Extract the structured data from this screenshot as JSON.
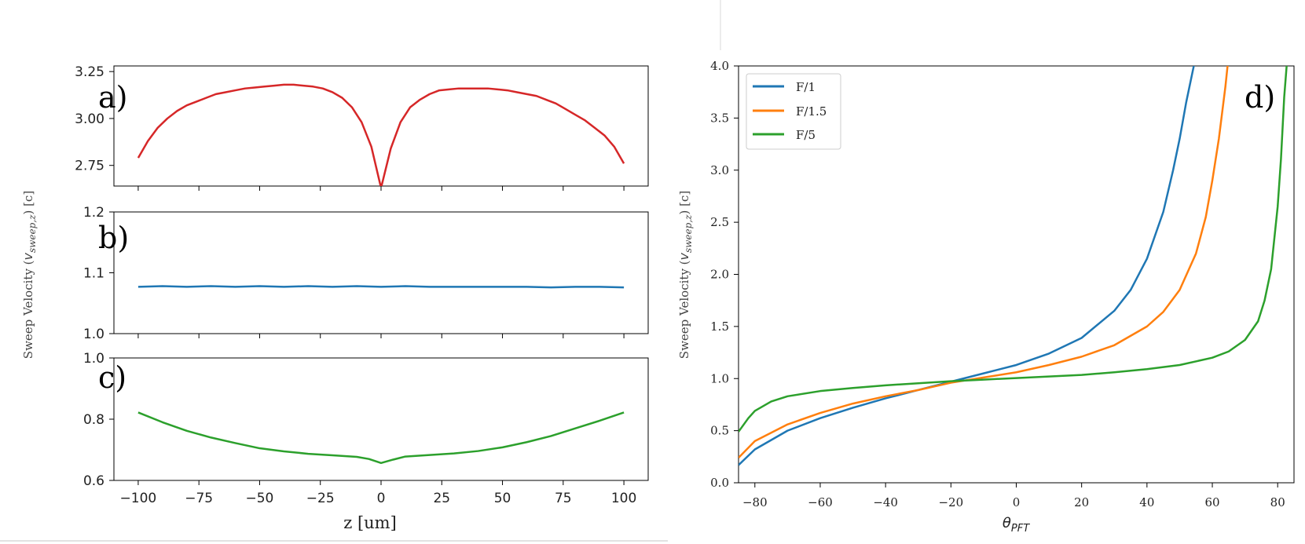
{
  "chart_data": [
    {
      "type": "line",
      "panel_label": "a)",
      "series": [
        {
          "color": "#d62728",
          "x": [
            -100,
            -96,
            -92,
            -88,
            -84,
            -80,
            -76,
            -72,
            -68,
            -64,
            -60,
            -56,
            -52,
            -48,
            -44,
            -40,
            -36,
            -32,
            -28,
            -24,
            -20,
            -16,
            -12,
            -8,
            -4,
            0,
            4,
            8,
            12,
            16,
            20,
            24,
            28,
            32,
            36,
            40,
            44,
            48,
            52,
            56,
            60,
            64,
            68,
            72,
            76,
            80,
            84,
            88,
            92,
            96,
            100
          ],
          "y": [
            2.79,
            2.88,
            2.95,
            3.0,
            3.04,
            3.07,
            3.09,
            3.11,
            3.13,
            3.14,
            3.15,
            3.16,
            3.165,
            3.17,
            3.175,
            3.18,
            3.18,
            3.175,
            3.17,
            3.16,
            3.14,
            3.11,
            3.06,
            2.98,
            2.85,
            2.63,
            2.84,
            2.98,
            3.06,
            3.1,
            3.13,
            3.15,
            3.155,
            3.16,
            3.16,
            3.16,
            3.16,
            3.155,
            3.15,
            3.14,
            3.13,
            3.12,
            3.1,
            3.08,
            3.05,
            3.02,
            2.99,
            2.95,
            2.91,
            2.85,
            2.76
          ]
        }
      ],
      "xlim": [
        -110,
        110
      ],
      "ylim": [
        2.64,
        3.28
      ],
      "yticks": [
        2.75,
        3.0,
        3.25
      ],
      "ytick_labels": [
        "2.75",
        "3.00",
        "3.25"
      ]
    },
    {
      "type": "line",
      "panel_label": "b)",
      "series": [
        {
          "color": "#1f77b4",
          "x": [
            -100,
            -90,
            -80,
            -70,
            -60,
            -50,
            -40,
            -30,
            -20,
            -10,
            0,
            10,
            20,
            30,
            40,
            50,
            60,
            70,
            80,
            90,
            100
          ],
          "y": [
            1.077,
            1.078,
            1.077,
            1.078,
            1.077,
            1.078,
            1.077,
            1.078,
            1.077,
            1.078,
            1.077,
            1.078,
            1.077,
            1.077,
            1.077,
            1.077,
            1.077,
            1.076,
            1.077,
            1.077,
            1.076
          ]
        }
      ],
      "xlim": [
        -110,
        110
      ],
      "ylim": [
        1.0,
        1.2
      ],
      "yticks": [
        1.0,
        1.1,
        1.2
      ],
      "ytick_labels": [
        "1.0",
        "1.1",
        "1.2"
      ]
    },
    {
      "type": "line",
      "panel_label": "c)",
      "series": [
        {
          "color": "#2ca02c",
          "x": [
            -100,
            -90,
            -80,
            -70,
            -60,
            -50,
            -40,
            -30,
            -20,
            -10,
            -5,
            0,
            5,
            10,
            20,
            30,
            40,
            50,
            60,
            70,
            80,
            90,
            100
          ],
          "y": [
            0.822,
            0.79,
            0.762,
            0.74,
            0.722,
            0.705,
            0.695,
            0.687,
            0.682,
            0.677,
            0.67,
            0.657,
            0.668,
            0.678,
            0.683,
            0.688,
            0.696,
            0.708,
            0.725,
            0.745,
            0.77,
            0.795,
            0.822
          ]
        }
      ],
      "xlim": [
        -110,
        110
      ],
      "ylim": [
        0.6,
        1.0
      ],
      "xticks": [
        -100,
        -75,
        -50,
        -25,
        0,
        25,
        50,
        75,
        100
      ],
      "xtick_labels": [
        "−100",
        "−75",
        "−50",
        "−25",
        "0",
        "25",
        "50",
        "75",
        "100"
      ],
      "yticks": [
        0.6,
        0.8,
        1.0
      ],
      "ytick_labels": [
        "0.6",
        "0.8",
        "1.0"
      ],
      "xlabel": "z [um]"
    },
    {
      "type": "line",
      "panel_label": "d)",
      "xlabel": "θPFT",
      "ylabel": "Sweep Velocity (vsweep,z) [c]",
      "legend_position": "top-left",
      "xlim": [
        -85,
        85
      ],
      "ylim": [
        0.0,
        4.0
      ],
      "xticks": [
        -80,
        -60,
        -40,
        -20,
        0,
        20,
        40,
        60,
        80
      ],
      "xtick_labels": [
        "−80",
        "−60",
        "−40",
        "−20",
        "0",
        "20",
        "40",
        "60",
        "80"
      ],
      "yticks": [
        0.0,
        0.5,
        1.0,
        1.5,
        2.0,
        2.5,
        3.0,
        3.5,
        4.0
      ],
      "ytick_labels": [
        "0.0",
        "0.5",
        "1.0",
        "1.5",
        "2.0",
        "2.5",
        "3.0",
        "3.5",
        "4.0"
      ],
      "series": [
        {
          "name": "F/1",
          "color": "#1f77b4",
          "x": [
            -85,
            -80,
            -70,
            -60,
            -50,
            -40,
            -30,
            -20,
            -10,
            0,
            10,
            20,
            30,
            35,
            40,
            45,
            48,
            50,
            52,
            54,
            55
          ],
          "y": [
            0.17,
            0.32,
            0.5,
            0.62,
            0.72,
            0.81,
            0.89,
            0.97,
            1.05,
            1.13,
            1.24,
            1.39,
            1.65,
            1.85,
            2.15,
            2.6,
            3.0,
            3.3,
            3.65,
            3.95,
            4.1
          ]
        },
        {
          "name": "F/1.5",
          "color": "#ff7f0e",
          "x": [
            -85,
            -80,
            -70,
            -60,
            -50,
            -40,
            -30,
            -20,
            -10,
            0,
            10,
            20,
            30,
            40,
            45,
            50,
            55,
            58,
            60,
            62,
            64,
            65
          ],
          "y": [
            0.24,
            0.4,
            0.56,
            0.67,
            0.76,
            0.83,
            0.89,
            0.96,
            1.01,
            1.06,
            1.13,
            1.21,
            1.32,
            1.5,
            1.64,
            1.85,
            2.2,
            2.55,
            2.9,
            3.3,
            3.8,
            4.1
          ]
        },
        {
          "name": "F/5",
          "color": "#2ca02c",
          "x": [
            -85,
            -82,
            -80,
            -75,
            -70,
            -60,
            -50,
            -40,
            -30,
            -20,
            -10,
            0,
            10,
            20,
            30,
            40,
            50,
            60,
            65,
            70,
            74,
            76,
            78,
            80,
            81,
            82,
            83
          ],
          "y": [
            0.49,
            0.62,
            0.69,
            0.78,
            0.83,
            0.88,
            0.91,
            0.935,
            0.955,
            0.975,
            0.99,
            1.005,
            1.02,
            1.035,
            1.06,
            1.09,
            1.13,
            1.2,
            1.26,
            1.37,
            1.55,
            1.75,
            2.05,
            2.65,
            3.1,
            3.7,
            4.1
          ]
        }
      ]
    }
  ],
  "shared_ylabel": "Sweep Velocity (vsweep,z) [c]"
}
